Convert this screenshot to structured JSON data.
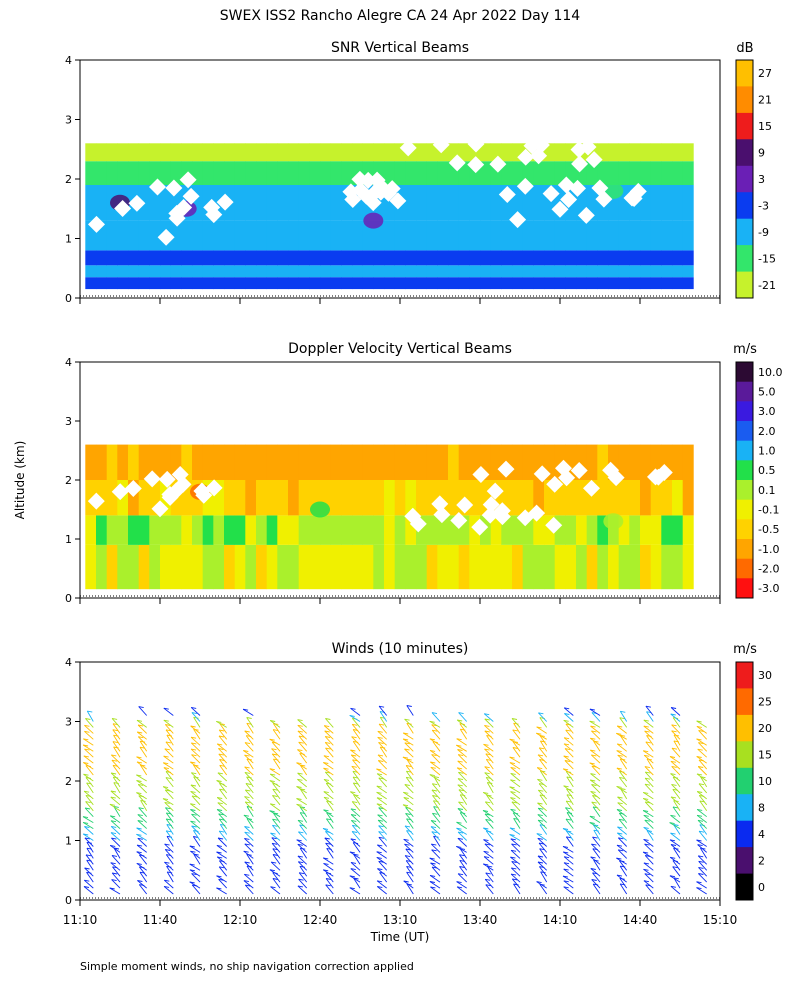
{
  "title": "SWEX ISS2 Rancho Alegre CA  24 Apr 2022 Day 114",
  "footnote": "Simple moment winds, no ship navigation correction applied",
  "shared_ylabel": "Altitude (km)",
  "chart_data": [
    {
      "type": "heatmap",
      "title": "SNR Vertical Beams",
      "ylabel": "Altitude (km)",
      "ylim": [
        0,
        4
      ],
      "yticks": [
        "0",
        "1",
        "2",
        "3",
        "4"
      ],
      "xlim_minutes": [
        0,
        240
      ],
      "colorbar_unit": "dB",
      "colorbar_labels": [
        "27",
        "21",
        "15",
        "9",
        "3",
        "-3",
        "-9",
        "-15",
        "-21"
      ],
      "colorbar_colors": [
        "#ffbf00",
        "#ff8c00",
        "#ee1c1c",
        "#4a0f6e",
        "#6a1fb5",
        "#0a3cf0",
        "#19b2f5",
        "#33e66b",
        "#c6f22c"
      ],
      "rows": [
        {
          "z": [
            0.15,
            0.35
          ],
          "level": -3
        },
        {
          "z": [
            0.35,
            0.55
          ],
          "level": -9
        },
        {
          "z": [
            0.55,
            0.8
          ],
          "level": -3
        },
        {
          "z": [
            0.8,
            1.3
          ],
          "level": -9
        },
        {
          "z": [
            1.3,
            1.9
          ],
          "level": -9
        },
        {
          "z": [
            1.9,
            2.3
          ],
          "level": -15
        },
        {
          "z": [
            2.3,
            2.6
          ],
          "level": -21
        }
      ],
      "blobs": [
        {
          "t": 15,
          "z": 1.6,
          "level": 9
        },
        {
          "t": 40,
          "z": 1.5,
          "level": 3
        },
        {
          "t": 110,
          "z": 1.3,
          "level": 3
        },
        {
          "t": 200,
          "z": 1.8,
          "level": -15
        }
      ],
      "gaps": [
        {
          "t": [
            5,
            65
          ],
          "z": [
            1.0,
            2.0
          ]
        },
        {
          "t": [
            100,
            120
          ],
          "z": [
            1.6,
            2.0
          ]
        },
        {
          "t": [
            160,
            210
          ],
          "z": [
            1.3,
            1.9
          ]
        },
        {
          "t": [
            120,
            200
          ],
          "z": [
            2.2,
            2.6
          ]
        }
      ]
    },
    {
      "type": "heatmap",
      "title": "Doppler Velocity Vertical Beams",
      "ylabel": "Altitude (km)",
      "ylim": [
        0,
        4
      ],
      "yticks": [
        "0",
        "1",
        "2",
        "3",
        "4"
      ],
      "xlim_minutes": [
        0,
        240
      ],
      "colorbar_unit": "m/s",
      "colorbar_labels": [
        "10.0",
        "5.0",
        "3.0",
        "2.0",
        "1.0",
        "0.5",
        "0.1",
        "-0.1",
        "-0.5",
        "-1.0",
        "-2.0",
        "-3.0"
      ],
      "colorbar_colors": [
        "#2c0a33",
        "#5a1a9a",
        "#3a1ae0",
        "#1a5cf0",
        "#19b2f5",
        "#22e04a",
        "#aaf02c",
        "#f0f000",
        "#ffd200",
        "#ffa500",
        "#ff6a00",
        "#ff1010"
      ],
      "rows": [
        {
          "z": [
            0.15,
            0.9
          ],
          "level": -0.1
        },
        {
          "z": [
            0.9,
            1.4
          ],
          "level": 0.1
        },
        {
          "z": [
            1.4,
            2.0
          ],
          "level": -0.5
        },
        {
          "z": [
            2.0,
            2.6
          ],
          "level": -1.0
        }
      ],
      "blobs": [
        {
          "t": 45,
          "z": 1.8,
          "level": -2.0
        },
        {
          "t": 90,
          "z": 1.5,
          "level": 0.5
        },
        {
          "t": 200,
          "z": 1.3,
          "level": 0.1
        }
      ],
      "gaps": [
        {
          "t": [
            5,
            60
          ],
          "z": [
            1.5,
            2.1
          ]
        },
        {
          "t": [
            120,
            180
          ],
          "z": [
            1.2,
            1.6
          ]
        },
        {
          "t": [
            150,
            220
          ],
          "z": [
            1.8,
            2.2
          ]
        }
      ]
    },
    {
      "type": "wind-barbs",
      "title": "Winds (10 minutes)",
      "ylabel": "Altitude (km)",
      "xlabel": "Time (UT)",
      "ylim": [
        0,
        4
      ],
      "yticks": [
        "0",
        "1",
        "2",
        "3",
        "4"
      ],
      "xlim_minutes": [
        0,
        240
      ],
      "xtick_labels": [
        "11:10",
        "11:40",
        "12:10",
        "12:40",
        "13:10",
        "13:40",
        "14:10",
        "14:40",
        "15:10"
      ],
      "colorbar_unit": "m/s",
      "colorbar_labels": [
        "30",
        "25",
        "20",
        "15",
        "10",
        "8",
        "4",
        "2",
        "0"
      ],
      "colorbar_colors": [
        "#ee1c1c",
        "#ff6a00",
        "#ffbf00",
        "#a8e020",
        "#22d070",
        "#19b2f5",
        "#0a2af0",
        "#4a0f6e",
        "#000000"
      ],
      "profile_interval_min": 10,
      "speed_profile_knots_km": [
        {
          "z": 0.2,
          "speed": 3
        },
        {
          "z": 0.8,
          "speed": 4
        },
        {
          "z": 1.2,
          "speed": 10
        },
        {
          "z": 1.8,
          "speed": 15
        },
        {
          "z": 2.4,
          "speed": 20
        },
        {
          "z": 2.8,
          "speed": 20
        },
        {
          "z": 3.1,
          "speed": 3
        }
      ]
    }
  ]
}
